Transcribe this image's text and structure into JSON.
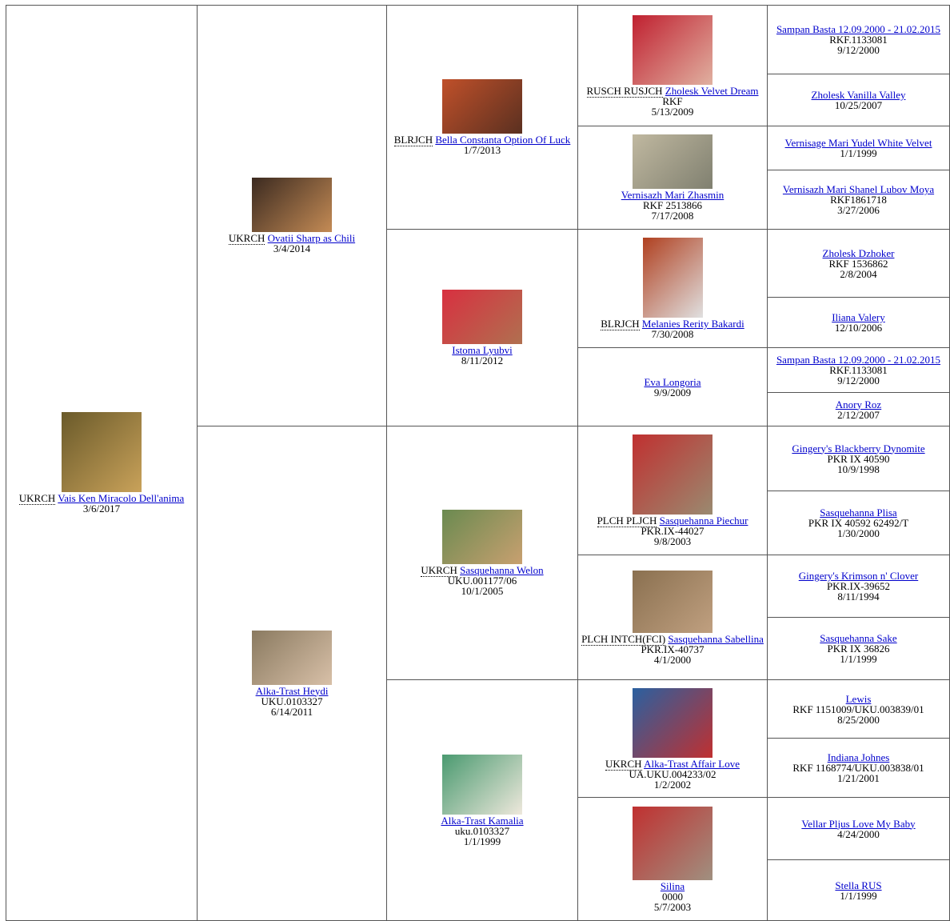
{
  "generations": [
    [
      {
        "title": "UKRCH",
        "name": "Vais Ken Miracolo Dell'anima",
        "date": "3/6/2017"
      }
    ],
    [
      {
        "title": "UKRCH",
        "name": "Ovatii Sharp as Chili",
        "date": "3/4/2014"
      },
      {
        "name": "Alka-Trast Heydi",
        "reg": "UKU.0103327",
        "date": "6/14/2011"
      }
    ],
    [
      {
        "title": "BLRJCH",
        "name": "Bella Constanta Option Of Luck",
        "date": "1/7/2013"
      },
      {
        "name": "Istoma Lyubvi",
        "date": "8/11/2012"
      },
      {
        "title": "UKRCH",
        "name": "Sasquehanna Welon",
        "reg": "UKU.001177/06",
        "date": "10/1/2005"
      },
      {
        "name": "Alka-Trast Kamalia",
        "reg": "uku.0103327",
        "date": "1/1/1999"
      }
    ],
    [
      {
        "title": "RUSCH RUSJCH",
        "name": "Zholesk Velvet Dream",
        "reg": "RKF",
        "date": "5/13/2009"
      },
      {
        "name": "Vernisazh Mari Zhasmin",
        "reg": "RKF 2513866",
        "date": "7/17/2008"
      },
      {
        "title": "BLRJCH",
        "name": "Melanies Rerity Bakardi",
        "date": "7/30/2008"
      },
      {
        "name": "Eva Longoria",
        "date": "9/9/2009"
      },
      {
        "title": "PLCH PLJCH",
        "name": "Sasquehanna Piechur",
        "reg": "PKR.IX-44027",
        "date": "9/8/2003"
      },
      {
        "title": "PLCH INTCH(FCI)",
        "name": "Sasquehanna Sabellina",
        "reg": "PKR.IX-40737",
        "date": "4/1/2000"
      },
      {
        "title": "UKRCH",
        "name": "Alka-Trast Affair Love",
        "reg": "UA.UKU.004233/02",
        "date": "1/2/2002"
      },
      {
        "name": "Silina",
        "reg": "0000",
        "date": "5/7/2003"
      }
    ],
    [
      {
        "name": "Sampan Basta 12.09.2000 - 21.02.2015",
        "reg": "RKF.1133081",
        "date": "9/12/2000"
      },
      {
        "name": "Zholesk Vanilla Valley",
        "date": "10/25/2007"
      },
      {
        "name": "Vernisage Mari Yudel White Velvet",
        "date": "1/1/1999"
      },
      {
        "name": "Vernisazh Mari Shanel Lubov Moya",
        "reg": "RKF1861718",
        "date": "3/27/2006"
      },
      {
        "name": "Zholesk Dzhoker",
        "reg": "RKF 1536862",
        "date": "2/8/2004"
      },
      {
        "name": "Iliana Valery",
        "date": "12/10/2006"
      },
      {
        "name": "Sampan Basta 12.09.2000 - 21.02.2015",
        "reg": "RKF.1133081",
        "date": "9/12/2000"
      },
      {
        "name": "Anory Roz",
        "date": "2/12/2007"
      },
      {
        "name": "Gingery's Blackberry Dynomite",
        "reg": "PKR IX 40590",
        "date": "10/9/1998"
      },
      {
        "name": "Sasquehanna Plisa",
        "reg": "PKR IX 40592 62492/T",
        "date": "1/30/2000"
      },
      {
        "name": "Gingery's Krimson n' Clover",
        "reg": "PKR.IX-39652",
        "date": "8/11/1994"
      },
      {
        "name": "Sasquehanna Sake",
        "reg": "PKR IX 36826",
        "date": "1/1/1999"
      },
      {
        "name": "Lewis",
        "reg": "RKF 1151009/UKU.003839/01",
        "date": "8/25/2000"
      },
      {
        "name": "Indiana Johnes",
        "reg": "RKF 1168774/UKU.003838/01",
        "date": "1/21/2001"
      },
      {
        "name": "Vellar Pljus Love My Baby",
        "date": "4/24/2000"
      },
      {
        "name": "Stella RUS",
        "date": "1/1/1999"
      }
    ]
  ]
}
